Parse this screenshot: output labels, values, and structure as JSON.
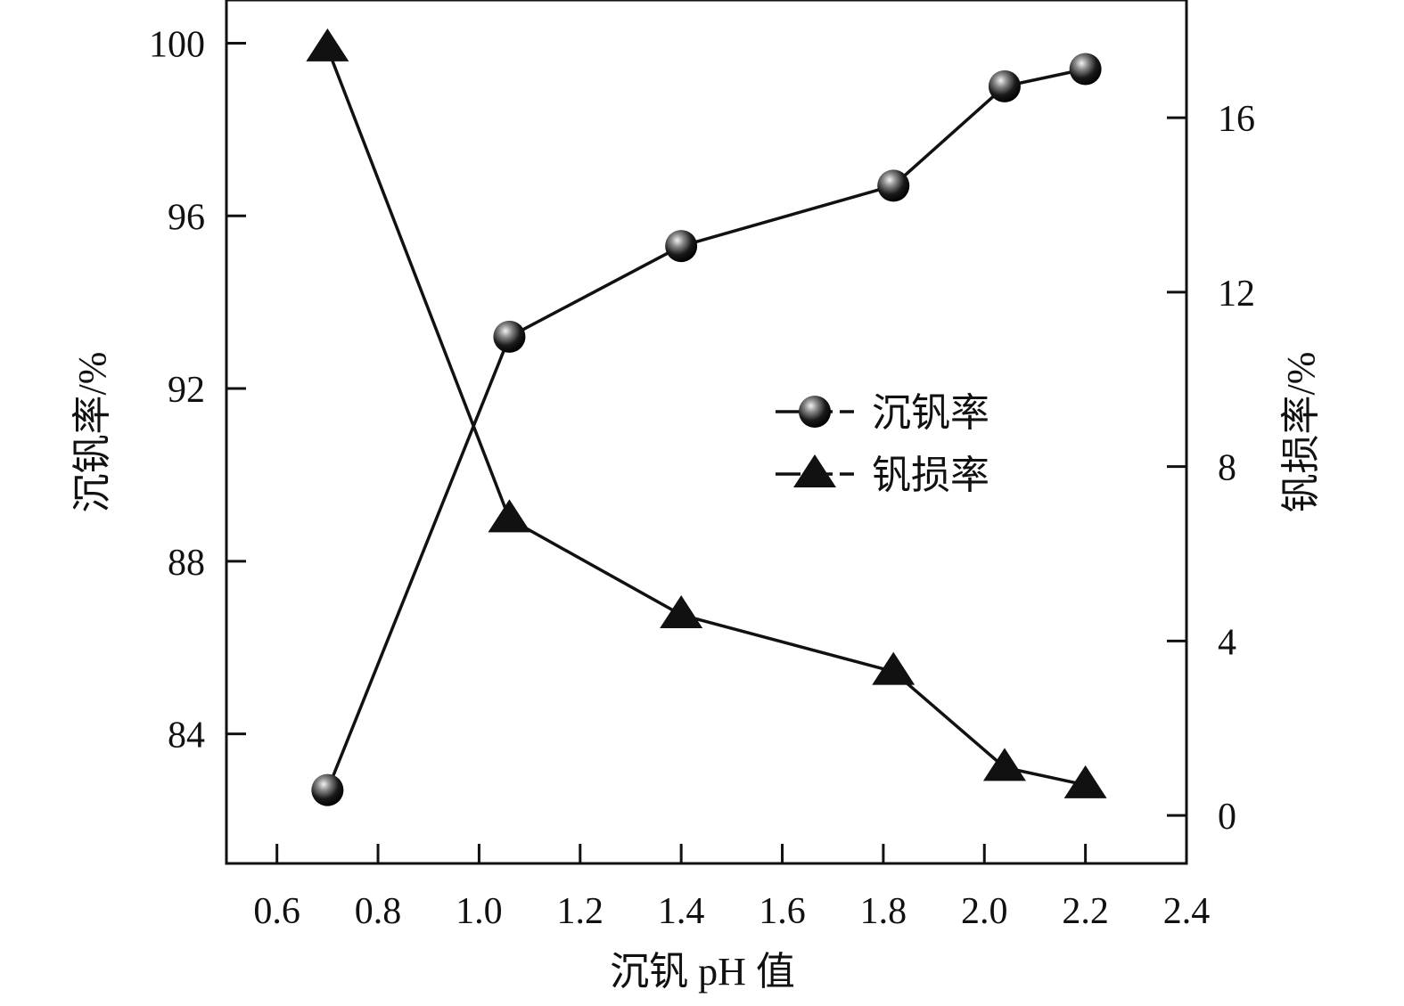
{
  "chart_data": {
    "type": "line",
    "xlabel": "沉钒 pH 值",
    "ylabel_left": "沉钒率/%",
    "ylabel_right": "钒损率/%",
    "xlim": [
      0.5,
      2.4
    ],
    "ylim_left": [
      81,
      101
    ],
    "ylim_right": [
      -1.1,
      18.7
    ],
    "xticks": [
      "0.6",
      "0.8",
      "1.0",
      "1.2",
      "1.4",
      "1.6",
      "1.8",
      "2.0",
      "2.2",
      "2.4"
    ],
    "xtick_values": [
      0.6,
      0.8,
      1.0,
      1.2,
      1.4,
      1.6,
      1.8,
      2.0,
      2.2,
      2.4
    ],
    "yticks_left": [
      "84",
      "88",
      "92",
      "96",
      "100"
    ],
    "ytick_values_left": [
      84,
      88,
      92,
      96,
      100
    ],
    "yticks_right": [
      "0",
      "4",
      "8",
      "12",
      "16"
    ],
    "ytick_values_right": [
      0,
      4,
      8,
      12,
      16
    ],
    "grid": false,
    "legend_position": "center-right",
    "colors": {
      "line": "#111111",
      "axis": "#111111",
      "marker_highlight": "#f2f2f2"
    },
    "series": [
      {
        "name": "沉钒率",
        "axis": "left",
        "marker": "sphere",
        "x": [
          0.7,
          1.06,
          1.4,
          1.82,
          2.04,
          2.2
        ],
        "y": [
          82.7,
          93.2,
          95.3,
          96.7,
          99.0,
          99.4
        ]
      },
      {
        "name": "钒损率",
        "axis": "right",
        "marker": "triangle",
        "x": [
          0.7,
          1.06,
          1.4,
          1.82,
          2.04,
          2.2
        ],
        "y": [
          17.6,
          6.8,
          4.6,
          3.3,
          1.1,
          0.7
        ]
      }
    ]
  }
}
